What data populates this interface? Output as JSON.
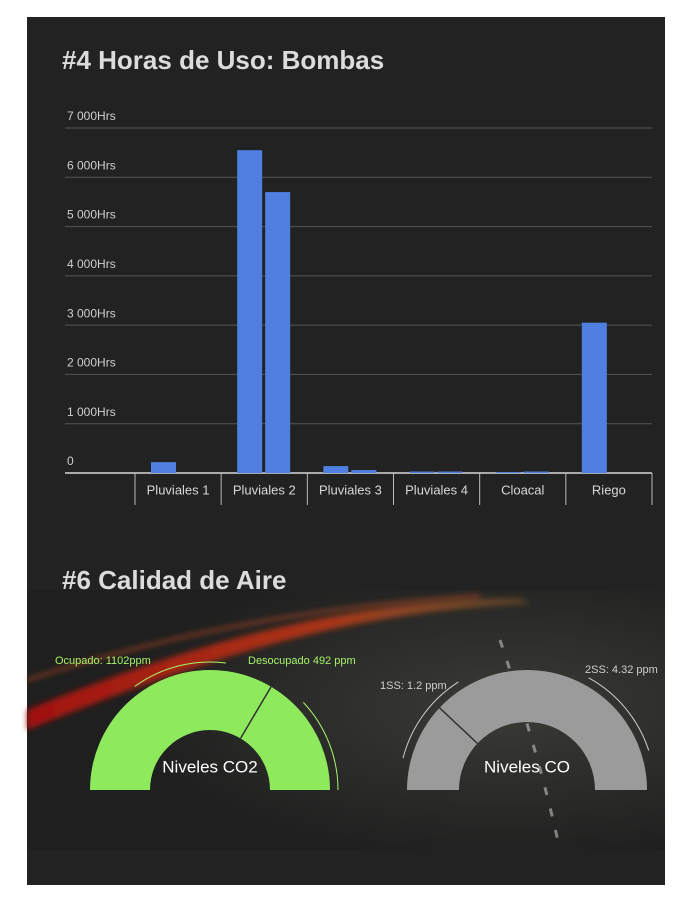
{
  "chart_data": {
    "type": "bar",
    "title": "#4 Horas de Uso: Bombas",
    "categories": [
      "Pluviales 1",
      "Pluviales 2",
      "Pluviales 3",
      "Pluviales 4",
      "Cloacal",
      "Riego"
    ],
    "series": [
      {
        "color": "#4f7fe0",
        "values": [
          220,
          6550,
          140,
          30,
          20,
          3050
        ]
      },
      {
        "color": "#4f7fe0",
        "values": [
          0,
          5700,
          60,
          30,
          30,
          0
        ]
      }
    ],
    "ylim": [
      0,
      7000
    ],
    "yticks": [
      0,
      {
        "value": 1000,
        "label": "1 000Hrs"
      },
      {
        "value": 2000,
        "label": "2 000Hrs"
      },
      {
        "value": 3000,
        "label": "3 000Hrs"
      },
      {
        "value": 4000,
        "label": "4 000Hrs"
      },
      {
        "value": 5000,
        "label": "5 000Hrs"
      },
      {
        "value": 6000,
        "label": "6 000Hrs"
      },
      {
        "value": 7000,
        "label": "7 000Hrs"
      }
    ],
    "grid": true
  },
  "air_quality": {
    "title": "#6 Calidad de Aire",
    "gauges": [
      {
        "label": "Niveles CO2",
        "color": "#8eea5c",
        "marker_color": "#a6f36a",
        "markers": [
          "Ocupado: 1102ppm",
          "Desocupado 492 ppm"
        ]
      },
      {
        "label": "Niveles CO",
        "color": "#9b9b9b",
        "marker_color": "#cfcfcf",
        "markers": [
          "1SS: 1.2 ppm",
          "2SS: 4.32 ppm"
        ]
      }
    ]
  }
}
